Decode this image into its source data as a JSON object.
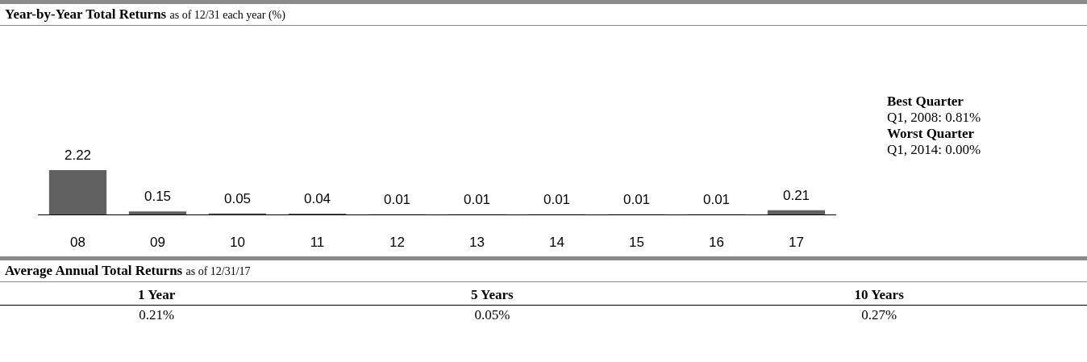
{
  "chart_data": [
    {
      "type": "bar",
      "title": "Year-by-Year Total Returns",
      "subtitle": "as of 12/31 each year (%)",
      "categories": [
        "08",
        "09",
        "10",
        "11",
        "12",
        "13",
        "14",
        "15",
        "16",
        "17"
      ],
      "values": [
        2.22,
        0.15,
        0.05,
        0.04,
        0.01,
        0.01,
        0.01,
        0.01,
        0.01,
        0.21
      ],
      "color": "#606060",
      "data_labels": true,
      "annotations": [
        "Best Quarter",
        "Q1, 2008:  0.81%",
        "Worst Quarter",
        "Q1, 2014:  0.00%"
      ]
    },
    {
      "type": "other",
      "title": "Average Annual Total Returns",
      "subtitle": "as of 12/31/17",
      "categories": [
        "1 Year",
        "5 Years",
        "10 Years"
      ],
      "annotations": [
        "0.21%",
        "0.05%",
        "0.27%"
      ]
    }
  ]
}
